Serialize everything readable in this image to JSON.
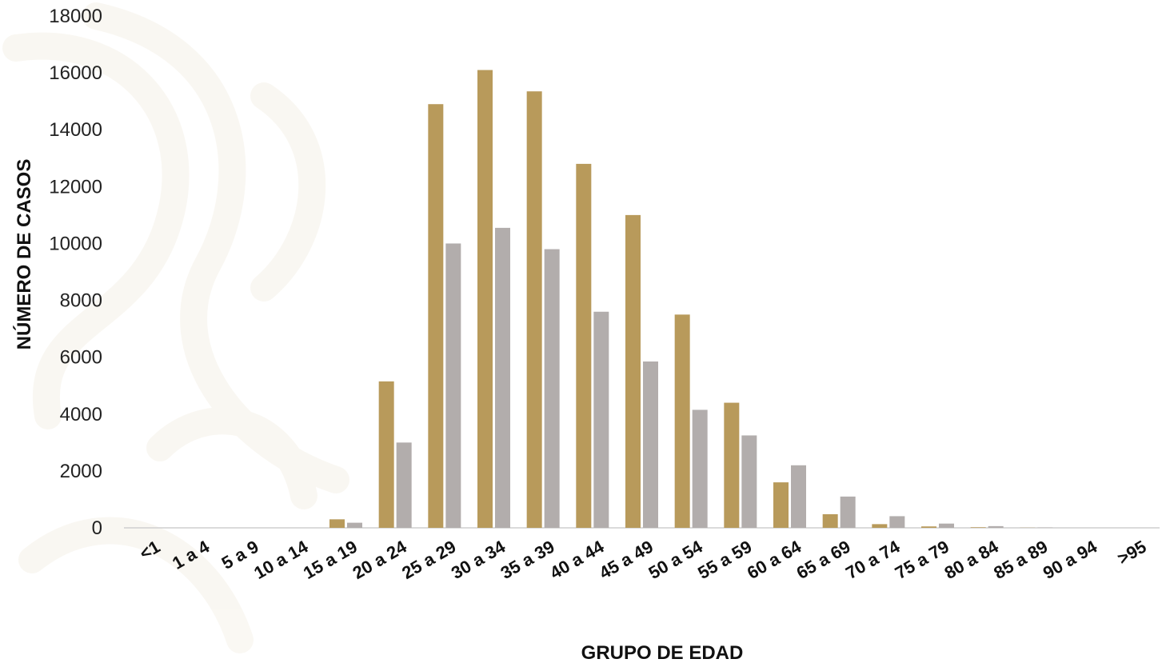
{
  "chart_data": {
    "type": "bar",
    "xlabel": "GRUPO DE EDAD",
    "ylabel": "NÚMERO DE CASOS",
    "ylim": [
      0,
      18000
    ],
    "yticks": [
      "0",
      "2000",
      "4000",
      "6000",
      "8000",
      "10000",
      "12000",
      "14000",
      "16000",
      "18000"
    ],
    "grid": false,
    "legend": "none",
    "categories": [
      "<1",
      "1 a 4",
      "5 a 9",
      "10 a 14",
      "15 a 19",
      "20 a 24",
      "25 a 29",
      "30 a 34",
      "35 a 39",
      "40 a 44",
      "45 a 49",
      "50 a 54",
      "55 a 59",
      "60 a 64",
      "65 a 69",
      "70 a 74",
      "75 a 79",
      "80 a 84",
      "85 a 89",
      "90 a 94",
      ">95"
    ],
    "series": [
      {
        "color": "#b89a5b",
        "values": [
          0,
          0,
          0,
          0,
          300,
          5150,
          14900,
          16100,
          15350,
          12800,
          11000,
          7500,
          4400,
          1600,
          480,
          130,
          50,
          20,
          5,
          0,
          0
        ]
      },
      {
        "color": "#b2adac",
        "values": [
          0,
          0,
          0,
          0,
          180,
          3000,
          10000,
          10550,
          9800,
          7600,
          5850,
          4150,
          3250,
          2200,
          1100,
          410,
          150,
          60,
          10,
          0,
          0
        ]
      }
    ]
  }
}
